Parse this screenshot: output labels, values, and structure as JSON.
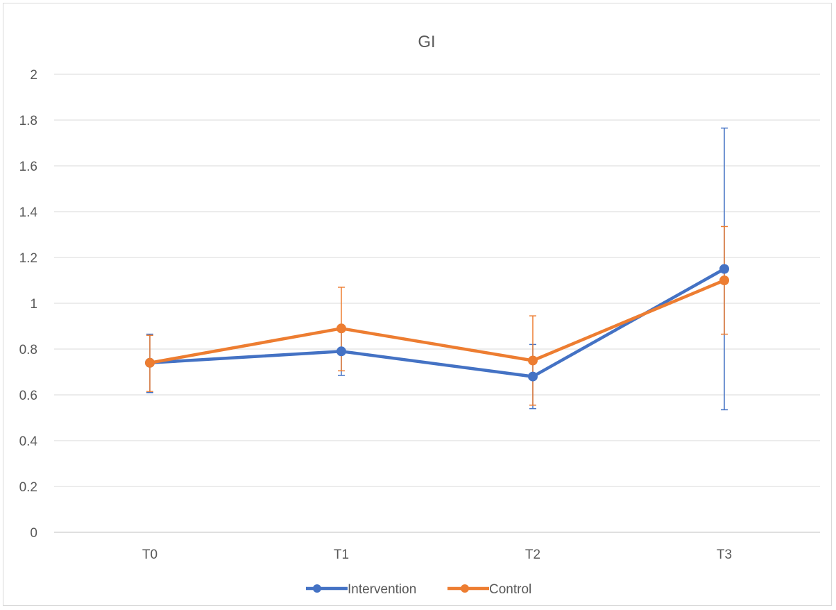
{
  "chart_data": {
    "type": "line",
    "title": "GI",
    "xlabel": "",
    "ylabel": "",
    "categories": [
      "T0",
      "T1",
      "T2",
      "T3"
    ],
    "ylim": [
      0,
      2
    ],
    "yticks": [
      "0",
      "0.2",
      "0.4",
      "0.6",
      "0.8",
      "1",
      "1.2",
      "1.4",
      "1.6",
      "1.8",
      "2"
    ],
    "grid": true,
    "legend_position": "bottom",
    "series": [
      {
        "name": "Intervention",
        "color": "#4472c4",
        "values": [
          0.74,
          0.79,
          0.68,
          1.15
        ],
        "error_low": [
          0.61,
          0.685,
          0.54,
          0.535
        ],
        "error_high": [
          0.865,
          0.895,
          0.82,
          1.765
        ]
      },
      {
        "name": "Control",
        "color": "#ed7d31",
        "values": [
          0.74,
          0.89,
          0.75,
          1.1
        ],
        "error_low": [
          0.615,
          0.705,
          0.555,
          0.865
        ],
        "error_high": [
          0.86,
          1.07,
          0.945,
          1.335
        ]
      }
    ]
  }
}
